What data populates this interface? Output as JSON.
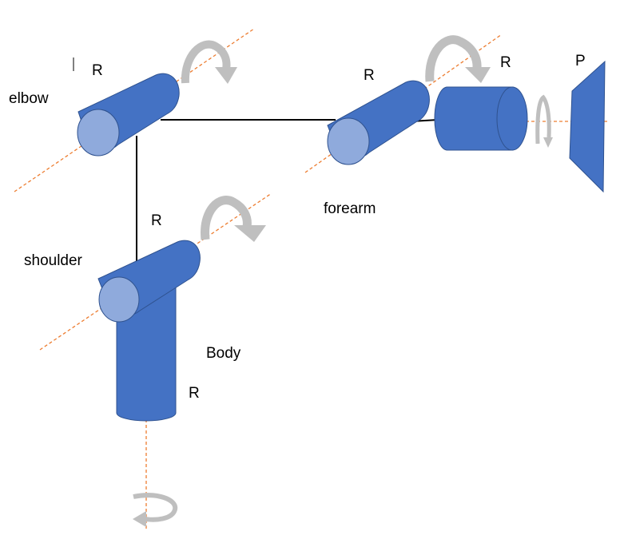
{
  "labels": {
    "elbow": "elbow",
    "shoulder": "shoulder",
    "forearm": "forearm",
    "body": "Body"
  },
  "joints": {
    "elbow_joint": "R",
    "forearm_joint": "R",
    "wrist_joint": "R",
    "end_effector": "P",
    "shoulder_joint": "R",
    "body_joint": "R"
  },
  "colors": {
    "cylinder_body": "#4472c4",
    "cylinder_face": "#8faadc",
    "cylinder_stroke": "#2f528f",
    "axis_line": "#ed7d31",
    "rotation_arrow": "#bfbfbf",
    "link_line": "#000000"
  },
  "icons": {
    "rotation": "curved-rotation-arrow-icon"
  }
}
